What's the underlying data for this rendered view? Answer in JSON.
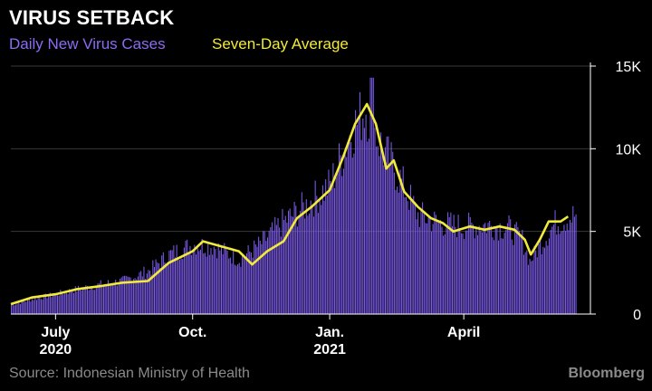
{
  "header": {
    "title": "VIRUS SETBACK",
    "legend_daily": "Daily New Virus Cases",
    "legend_avg": "Seven-Day Average"
  },
  "footer": {
    "source": "Source: Indonesian Ministry of Health",
    "brand": "Bloomberg"
  },
  "colors": {
    "background": "#000000",
    "bars": "#7b5be8",
    "average_line": "#f1ea3a",
    "axis": "#ffffff",
    "grid": "#3a3a3a"
  },
  "chart_data": {
    "type": "bar",
    "title": "VIRUS SETBACK",
    "xlabel": "",
    "ylabel": "",
    "ylim": [
      0,
      15000
    ],
    "grid": true,
    "legend_position": "top-left",
    "y_ticks": [
      {
        "value": 0,
        "label": "0"
      },
      {
        "value": 5000,
        "label": "5K"
      },
      {
        "value": 10000,
        "label": "10K"
      },
      {
        "value": 15000,
        "label": "15K"
      }
    ],
    "x_ticks": [
      {
        "date": "2020-07-01",
        "label": [
          "July",
          "2020"
        ]
      },
      {
        "date": "2020-10-01",
        "label": [
          "Oct."
        ]
      },
      {
        "date": "2021-01-01",
        "label": [
          "Jan.",
          "2021"
        ]
      },
      {
        "date": "2021-04-01",
        "label": [
          "April"
        ]
      }
    ],
    "x_range": [
      "2020-06-01",
      "2021-06-25"
    ],
    "series": [
      {
        "name": "Daily New Virus Cases",
        "type": "bar",
        "anchors": [
          [
            "2020-06-01",
            550
          ],
          [
            "2020-06-15",
            900
          ],
          [
            "2020-07-01",
            1200
          ],
          [
            "2020-07-15",
            1500
          ],
          [
            "2020-08-01",
            1800
          ],
          [
            "2020-08-15",
            2000
          ],
          [
            "2020-09-01",
            2600
          ],
          [
            "2020-09-15",
            3600
          ],
          [
            "2020-10-01",
            4200
          ],
          [
            "2020-10-15",
            4100
          ],
          [
            "2020-11-01",
            3300
          ],
          [
            "2020-11-15",
            4200
          ],
          [
            "2020-12-01",
            5600
          ],
          [
            "2020-12-15",
            6500
          ],
          [
            "2021-01-01",
            7800
          ],
          [
            "2021-01-15",
            11000
          ],
          [
            "2021-01-25",
            12500
          ],
          [
            "2021-02-05",
            10000
          ],
          [
            "2021-02-15",
            8500
          ],
          [
            "2021-03-01",
            6000
          ],
          [
            "2021-03-15",
            5500
          ],
          [
            "2021-04-01",
            5300
          ],
          [
            "2021-04-15",
            5400
          ],
          [
            "2021-05-01",
            5200
          ],
          [
            "2021-05-10",
            4500
          ],
          [
            "2021-05-15",
            3200
          ],
          [
            "2021-06-01",
            5500
          ],
          [
            "2021-06-15",
            6000
          ]
        ]
      },
      {
        "name": "Seven-Day Average",
        "type": "line",
        "points": [
          [
            "2020-06-01",
            600
          ],
          [
            "2020-06-15",
            1000
          ],
          [
            "2020-07-01",
            1200
          ],
          [
            "2020-07-15",
            1500
          ],
          [
            "2020-08-01",
            1700
          ],
          [
            "2020-08-15",
            1900
          ],
          [
            "2020-09-01",
            2000
          ],
          [
            "2020-09-15",
            3100
          ],
          [
            "2020-10-01",
            3800
          ],
          [
            "2020-10-08",
            4400
          ],
          [
            "2020-10-20",
            4100
          ],
          [
            "2020-11-01",
            3800
          ],
          [
            "2020-11-10",
            3000
          ],
          [
            "2020-11-20",
            3800
          ],
          [
            "2020-12-01",
            4400
          ],
          [
            "2020-12-10",
            5800
          ],
          [
            "2020-12-20",
            6500
          ],
          [
            "2021-01-01",
            7500
          ],
          [
            "2021-01-10",
            9500
          ],
          [
            "2021-01-18",
            11500
          ],
          [
            "2021-01-26",
            12700
          ],
          [
            "2021-02-01",
            11500
          ],
          [
            "2021-02-08",
            8800
          ],
          [
            "2021-02-13",
            9300
          ],
          [
            "2021-02-20",
            7400
          ],
          [
            "2021-03-01",
            6500
          ],
          [
            "2021-03-10",
            5800
          ],
          [
            "2021-03-18",
            5500
          ],
          [
            "2021-03-25",
            5000
          ],
          [
            "2021-04-05",
            5300
          ],
          [
            "2021-04-15",
            5100
          ],
          [
            "2021-04-25",
            5300
          ],
          [
            "2021-05-05",
            5100
          ],
          [
            "2021-05-12",
            4500
          ],
          [
            "2021-05-16",
            3600
          ],
          [
            "2021-05-22",
            4500
          ],
          [
            "2021-05-28",
            5600
          ],
          [
            "2021-06-05",
            5600
          ],
          [
            "2021-06-10",
            5900
          ]
        ]
      }
    ]
  }
}
